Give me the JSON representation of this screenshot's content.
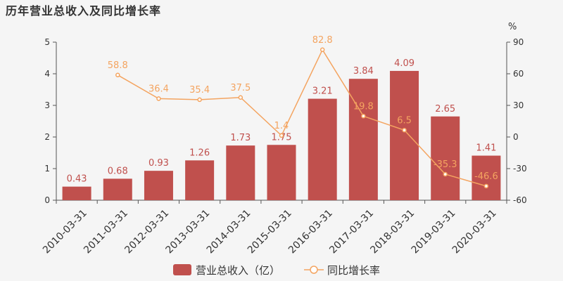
{
  "title": "历年营业总收入及同比增长率",
  "colors": {
    "bar": "#c0504d",
    "line": "#f4a460",
    "axis": "#555555"
  },
  "chart_data": {
    "type": "bar",
    "categories": [
      "2010-03-31",
      "2011-03-31",
      "2012-03-31",
      "2013-03-31",
      "2014-03-31",
      "2015-03-31",
      "2016-03-31",
      "2017-03-31",
      "2018-03-31",
      "2019-03-31",
      "2020-03-31"
    ],
    "series": [
      {
        "name": "营业总收入（亿）",
        "type": "bar",
        "axis": "left",
        "values": [
          0.43,
          0.68,
          0.93,
          1.26,
          1.73,
          1.75,
          3.21,
          3.84,
          4.09,
          2.65,
          1.41
        ],
        "labels": [
          "0.43",
          "0.68",
          "0.93",
          "1.26",
          "1.73",
          "1.75",
          "3.21",
          "3.84",
          "4.09",
          "2.65",
          "1.41"
        ]
      },
      {
        "name": "同比增长率",
        "type": "line",
        "axis": "right",
        "values": [
          null,
          58.8,
          36.4,
          35.4,
          37.5,
          1.4,
          82.8,
          19.8,
          6.5,
          -35.3,
          -46.6
        ],
        "labels": [
          "",
          "58.8",
          "36.4",
          "35.4",
          "37.5",
          "1.4",
          "82.8",
          "19.8",
          "6.5",
          "-35.3",
          "-46.6"
        ]
      }
    ],
    "y_left": {
      "min": 0,
      "max": 5,
      "ticks": [
        0,
        1,
        2,
        3,
        4,
        5
      ],
      "tick_labels": [
        "0",
        "1",
        "2",
        "3",
        "4",
        "5"
      ]
    },
    "y_right": {
      "min": -60,
      "max": 90,
      "ticks": [
        -60,
        -30,
        0,
        30,
        60,
        90
      ],
      "tick_labels": [
        "-60",
        "-30",
        "0",
        "30",
        "60",
        "90"
      ],
      "unit": "%"
    },
    "legend": {
      "position": "bottom",
      "items": [
        "营业总收入（亿）",
        "同比增长率"
      ]
    },
    "grid": false
  }
}
